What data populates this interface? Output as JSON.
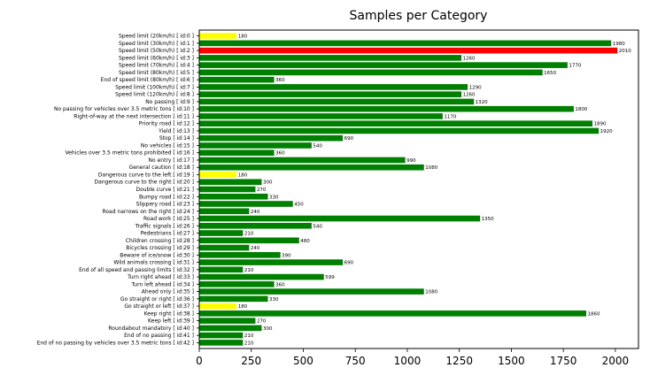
{
  "chart_data": {
    "type": "bar",
    "orientation": "horizontal",
    "title": "Samples per Category",
    "xlabel": "",
    "ylabel": "",
    "xlim": [
      0,
      2111
    ],
    "x_ticks": [
      0,
      250,
      500,
      750,
      1000,
      1250,
      1500,
      1750,
      2000
    ],
    "grid": false,
    "legend": "none",
    "colors": {
      "max": "#ff0000",
      "min": "#ffff00",
      "default": "#008000"
    },
    "categories": [
      "Speed limit (20km/h) [ id:0 ]",
      "Speed limit (30km/h) [ id:1 ]",
      "Speed limit (50km/h) [ id:2 ]",
      "Speed limit (60km/h) [ id:3 ]",
      "Speed limit (70km/h) [ id:4 ]",
      "Speed limit (80km/h) [ id:5 ]",
      "End of speed limit (80km/h) [ id:6 ]",
      "Speed limit (100km/h) [ id:7 ]",
      "Speed limit (120km/h) [ id:8 ]",
      "No passing [ id:9 ]",
      "No passing for vehicles over 3.5 metric tons [ id:10 ]",
      "Right-of-way at the next intersection [ id:11 ]",
      "Priority road [ id:12 ]",
      "Yield [ id:13 ]",
      "Stop [ id:14 ]",
      "No vehicles [ id:15 ]",
      "Vehicles over 3.5 metric tons prohibited [ id:16 ]",
      "No entry [ id:17 ]",
      "General caution [ id:18 ]",
      "Dangerous curve to the left [ id:19 ]",
      "Dangerous curve to the right [ id:20 ]",
      "Double curve [ id:21 ]",
      "Bumpy road [ id:22 ]",
      "Slippery road [ id:23 ]",
      "Road narrows on the right [ id:24 ]",
      "Road work [ id:25 ]",
      "Traffic signals [ id:26 ]",
      "Pedestrians [ id:27 ]",
      "Children crossing [ id:28 ]",
      "Bicycles crossing [ id:29 ]",
      "Beware of ice/snow [ id:30 ]",
      "Wild animals crossing [ id:31 ]",
      "End of all speed and passing limits [ id:32 ]",
      "Turn right ahead [ id:33 ]",
      "Turn left ahead [ id:34 ]",
      "Ahead only [ id:35 ]",
      "Go straight or right [ id:36 ]",
      "Go straight or left [ id:37 ]",
      "Keep right [ id:38 ]",
      "Keep left [ id:39 ]",
      "Roundabout mandatory [ id:40 ]",
      "End of no passing [ id:41 ]",
      "End of no passing by vehicles over 3.5 metric tons [ id:42 ]"
    ],
    "values": [
      180,
      1980,
      2010,
      1260,
      1770,
      1650,
      360,
      1290,
      1260,
      1320,
      1800,
      1170,
      1890,
      1920,
      690,
      540,
      360,
      990,
      1080,
      180,
      300,
      270,
      330,
      450,
      240,
      1350,
      540,
      210,
      480,
      240,
      390,
      690,
      210,
      599,
      360,
      1080,
      330,
      180,
      1860,
      270,
      300,
      210,
      210
    ]
  }
}
